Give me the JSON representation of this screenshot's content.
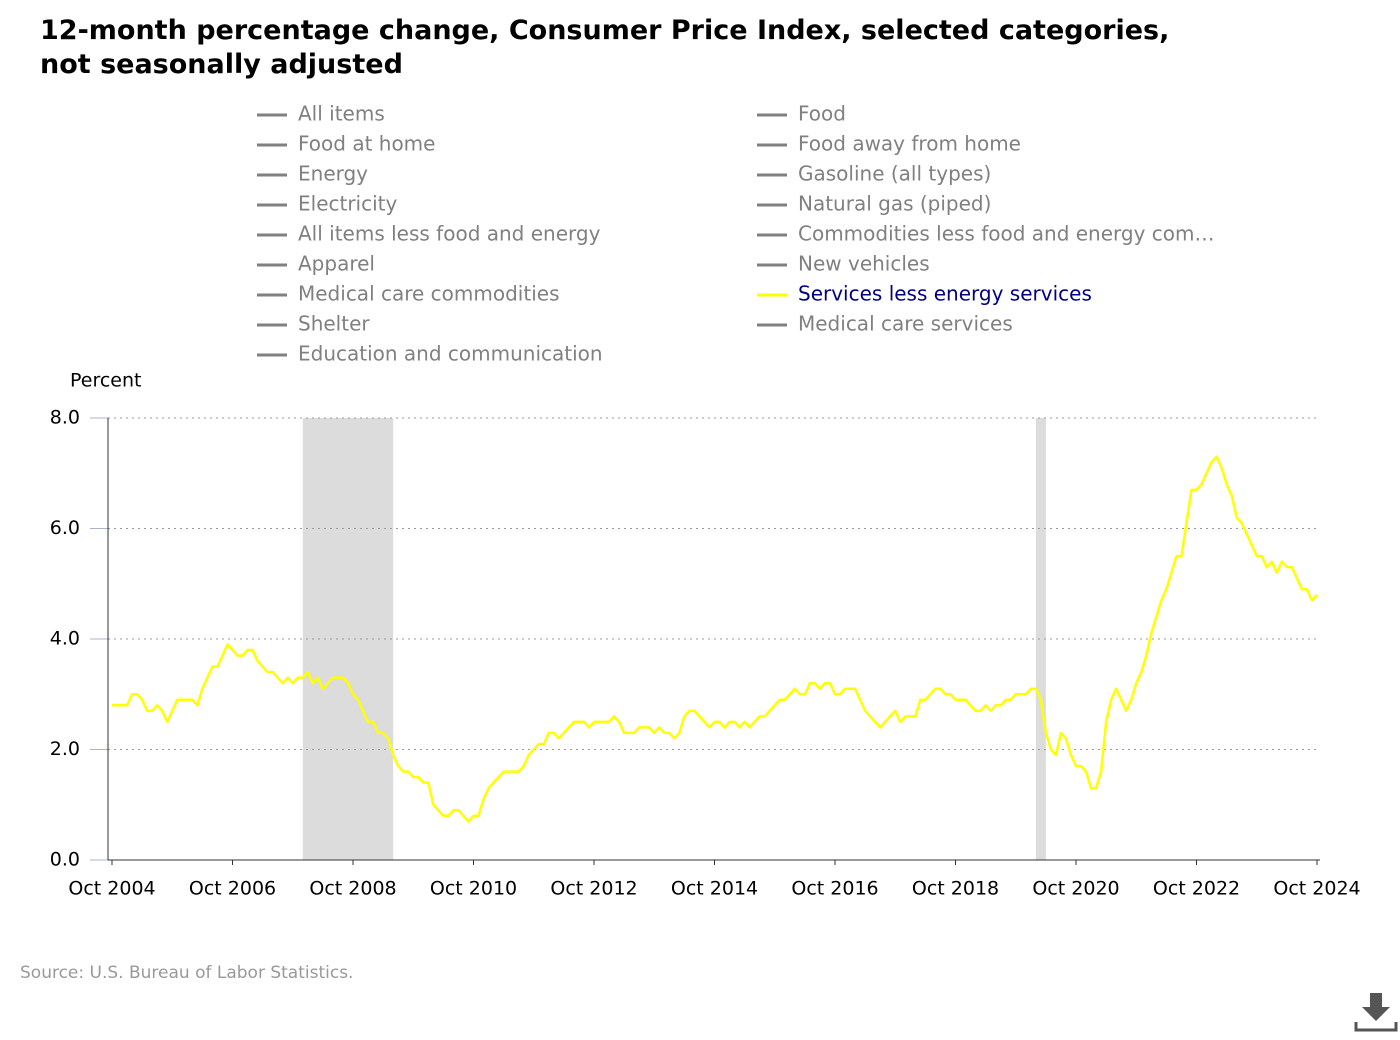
{
  "chart_data": {
    "type": "line",
    "title": "12-month percentage change, Consumer Price Index, selected categories, not seasonally adjusted",
    "y_axis_label": "Percent",
    "source": "Source: U.S. Bureau of Labor Statistics.",
    "xlim": [
      "2004-10",
      "2024-10"
    ],
    "xticks": [
      {
        "value": "2004-10",
        "label": "Oct 2004"
      },
      {
        "value": "2006-10",
        "label": "Oct 2006"
      },
      {
        "value": "2008-10",
        "label": "Oct 2008"
      },
      {
        "value": "2010-10",
        "label": "Oct 2010"
      },
      {
        "value": "2012-10",
        "label": "Oct 2012"
      },
      {
        "value": "2014-10",
        "label": "Oct 2014"
      },
      {
        "value": "2016-10",
        "label": "Oct 2016"
      },
      {
        "value": "2018-10",
        "label": "Oct 2018"
      },
      {
        "value": "2020-10",
        "label": "Oct 2020"
      },
      {
        "value": "2022-10",
        "label": "Oct 2022"
      },
      {
        "value": "2024-10",
        "label": "Oct 2024"
      }
    ],
    "ylim": [
      0,
      8
    ],
    "yticks": [
      {
        "value": 0,
        "label": "0.0"
      },
      {
        "value": 2,
        "label": "2.0"
      },
      {
        "value": 4,
        "label": "4.0"
      },
      {
        "value": 6,
        "label": "6.0"
      },
      {
        "value": 8,
        "label": "8.0"
      }
    ],
    "grid": true,
    "shaded_regions": [
      {
        "start": "2007-12",
        "end": "2009-06"
      },
      {
        "start": "2020-02",
        "end": "2020-04"
      }
    ],
    "x": [
      "2004-10",
      "2004-11",
      "2004-12",
      "2005-01",
      "2005-02",
      "2005-03",
      "2005-04",
      "2005-05",
      "2005-06",
      "2005-07",
      "2005-08",
      "2005-09",
      "2005-10",
      "2005-11",
      "2005-12",
      "2006-01",
      "2006-02",
      "2006-03",
      "2006-04",
      "2006-05",
      "2006-06",
      "2006-07",
      "2006-08",
      "2006-09",
      "2006-10",
      "2006-11",
      "2006-12",
      "2007-01",
      "2007-02",
      "2007-03",
      "2007-04",
      "2007-05",
      "2007-06",
      "2007-07",
      "2007-08",
      "2007-09",
      "2007-10",
      "2007-11",
      "2007-12",
      "2008-01",
      "2008-02",
      "2008-03",
      "2008-04",
      "2008-05",
      "2008-06",
      "2008-07",
      "2008-08",
      "2008-09",
      "2008-10",
      "2008-11",
      "2008-12",
      "2009-01",
      "2009-02",
      "2009-03",
      "2009-04",
      "2009-05",
      "2009-06",
      "2009-07",
      "2009-08",
      "2009-09",
      "2009-10",
      "2009-11",
      "2009-12",
      "2010-01",
      "2010-02",
      "2010-03",
      "2010-04",
      "2010-05",
      "2010-06",
      "2010-07",
      "2010-08",
      "2010-09",
      "2010-10",
      "2010-11",
      "2010-12",
      "2011-01",
      "2011-02",
      "2011-03",
      "2011-04",
      "2011-05",
      "2011-06",
      "2011-07",
      "2011-08",
      "2011-09",
      "2011-10",
      "2011-11",
      "2011-12",
      "2012-01",
      "2012-02",
      "2012-03",
      "2012-04",
      "2012-05",
      "2012-06",
      "2012-07",
      "2012-08",
      "2012-09",
      "2012-10",
      "2012-11",
      "2012-12",
      "2013-01",
      "2013-02",
      "2013-03",
      "2013-04",
      "2013-05",
      "2013-06",
      "2013-07",
      "2013-08",
      "2013-09",
      "2013-10",
      "2013-11",
      "2013-12",
      "2014-01",
      "2014-02",
      "2014-03",
      "2014-04",
      "2014-05",
      "2014-06",
      "2014-07",
      "2014-08",
      "2014-09",
      "2014-10",
      "2014-11",
      "2014-12",
      "2015-01",
      "2015-02",
      "2015-03",
      "2015-04",
      "2015-05",
      "2015-06",
      "2015-07",
      "2015-08",
      "2015-09",
      "2015-10",
      "2015-11",
      "2015-12",
      "2016-01",
      "2016-02",
      "2016-03",
      "2016-04",
      "2016-05",
      "2016-06",
      "2016-07",
      "2016-08",
      "2016-09",
      "2016-10",
      "2016-11",
      "2016-12",
      "2017-01",
      "2017-02",
      "2017-03",
      "2017-04",
      "2017-05",
      "2017-06",
      "2017-07",
      "2017-08",
      "2017-09",
      "2017-10",
      "2017-11",
      "2017-12",
      "2018-01",
      "2018-02",
      "2018-03",
      "2018-04",
      "2018-05",
      "2018-06",
      "2018-07",
      "2018-08",
      "2018-09",
      "2018-10",
      "2018-11",
      "2018-12",
      "2019-01",
      "2019-02",
      "2019-03",
      "2019-04",
      "2019-05",
      "2019-06",
      "2019-07",
      "2019-08",
      "2019-09",
      "2019-10",
      "2019-11",
      "2019-12",
      "2020-01",
      "2020-02",
      "2020-03",
      "2020-04",
      "2020-05",
      "2020-06",
      "2020-07",
      "2020-08",
      "2020-09",
      "2020-10",
      "2020-11",
      "2020-12",
      "2021-01",
      "2021-02",
      "2021-03",
      "2021-04",
      "2021-05",
      "2021-06",
      "2021-07",
      "2021-08",
      "2021-09",
      "2021-10",
      "2021-11",
      "2021-12",
      "2022-01",
      "2022-02",
      "2022-03",
      "2022-04",
      "2022-05",
      "2022-06",
      "2022-07",
      "2022-08",
      "2022-09",
      "2022-10",
      "2022-11",
      "2022-12",
      "2023-01",
      "2023-02",
      "2023-03",
      "2023-04",
      "2023-05",
      "2023-06",
      "2023-07",
      "2023-08",
      "2023-09",
      "2023-10",
      "2023-11",
      "2023-12",
      "2024-01",
      "2024-02",
      "2024-03",
      "2024-04",
      "2024-05",
      "2024-06",
      "2024-07",
      "2024-08",
      "2024-09",
      "2024-10"
    ],
    "series": [
      {
        "name": "All items",
        "color": "#808080",
        "visible": false
      },
      {
        "name": "Food",
        "color": "#808080",
        "visible": false
      },
      {
        "name": "Food at home",
        "color": "#808080",
        "visible": false
      },
      {
        "name": "Food away from home",
        "color": "#808080",
        "visible": false
      },
      {
        "name": "Energy",
        "color": "#808080",
        "visible": false
      },
      {
        "name": "Gasoline (all types)",
        "color": "#808080",
        "visible": false
      },
      {
        "name": "Electricity",
        "color": "#808080",
        "visible": false
      },
      {
        "name": "Natural gas (piped)",
        "color": "#808080",
        "visible": false
      },
      {
        "name": "All items less food and energy",
        "color": "#808080",
        "visible": false
      },
      {
        "name": "Commodities less food and energy com…",
        "color": "#808080",
        "visible": false
      },
      {
        "name": "Apparel",
        "color": "#808080",
        "visible": false
      },
      {
        "name": "New vehicles",
        "color": "#808080",
        "visible": false
      },
      {
        "name": "Medical care commodities",
        "color": "#808080",
        "visible": false
      },
      {
        "name": "Services less energy services",
        "color": "#ffff00",
        "visible": true,
        "values": [
          2.8,
          2.8,
          2.8,
          2.8,
          3.0,
          3.0,
          2.9,
          2.7,
          2.7,
          2.8,
          2.7,
          2.5,
          2.7,
          2.9,
          2.9,
          2.9,
          2.9,
          2.8,
          3.1,
          3.3,
          3.5,
          3.5,
          3.7,
          3.9,
          3.8,
          3.7,
          3.7,
          3.8,
          3.8,
          3.6,
          3.5,
          3.4,
          3.4,
          3.3,
          3.2,
          3.3,
          3.2,
          3.3,
          3.3,
          3.4,
          3.2,
          3.3,
          3.1,
          3.2,
          3.3,
          3.3,
          3.3,
          3.2,
          3.0,
          2.9,
          2.7,
          2.5,
          2.5,
          2.3,
          2.3,
          2.2,
          1.9,
          1.7,
          1.6,
          1.6,
          1.5,
          1.5,
          1.4,
          1.4,
          1.0,
          0.9,
          0.8,
          0.8,
          0.9,
          0.9,
          0.8,
          0.7,
          0.8,
          0.8,
          1.1,
          1.3,
          1.4,
          1.5,
          1.6,
          1.6,
          1.6,
          1.6,
          1.7,
          1.9,
          2.0,
          2.1,
          2.1,
          2.3,
          2.3,
          2.2,
          2.3,
          2.4,
          2.5,
          2.5,
          2.5,
          2.4,
          2.5,
          2.5,
          2.5,
          2.5,
          2.6,
          2.5,
          2.3,
          2.3,
          2.3,
          2.4,
          2.4,
          2.4,
          2.3,
          2.4,
          2.3,
          2.3,
          2.2,
          2.3,
          2.6,
          2.7,
          2.7,
          2.6,
          2.5,
          2.4,
          2.5,
          2.5,
          2.4,
          2.5,
          2.5,
          2.4,
          2.5,
          2.4,
          2.5,
          2.6,
          2.6,
          2.7,
          2.8,
          2.9,
          2.9,
          3.0,
          3.1,
          3.0,
          3.0,
          3.2,
          3.2,
          3.1,
          3.2,
          3.2,
          3.0,
          3.0,
          3.1,
          3.1,
          3.1,
          2.9,
          2.7,
          2.6,
          2.5,
          2.4,
          2.5,
          2.6,
          2.7,
          2.5,
          2.6,
          2.6,
          2.6,
          2.9,
          2.9,
          3.0,
          3.1,
          3.1,
          3.0,
          3.0,
          2.9,
          2.9,
          2.9,
          2.8,
          2.7,
          2.7,
          2.8,
          2.7,
          2.8,
          2.8,
          2.9,
          2.9,
          3.0,
          3.0,
          3.0,
          3.1,
          3.1,
          2.9,
          2.3,
          2.0,
          1.9,
          2.3,
          2.2,
          1.9,
          1.7,
          1.7,
          1.6,
          1.3,
          1.3,
          1.6,
          2.5,
          2.9,
          3.1,
          2.9,
          2.7,
          2.9,
          3.2,
          3.4,
          3.7,
          4.1,
          4.4,
          4.7,
          4.9,
          5.2,
          5.5,
          5.5,
          6.1,
          6.7,
          6.7,
          6.8,
          7.0,
          7.2,
          7.3,
          7.1,
          6.8,
          6.6,
          6.2,
          6.1,
          5.9,
          5.7,
          5.5,
          5.5,
          5.3,
          5.4,
          5.2,
          5.4,
          5.3,
          5.3,
          5.1,
          4.9,
          4.9,
          4.7,
          4.8
        ]
      },
      {
        "name": "Shelter",
        "color": "#808080",
        "visible": false
      },
      {
        "name": "Medical care services",
        "color": "#808080",
        "visible": false
      },
      {
        "name": "Education and communication",
        "color": "#808080",
        "visible": false
      }
    ]
  }
}
